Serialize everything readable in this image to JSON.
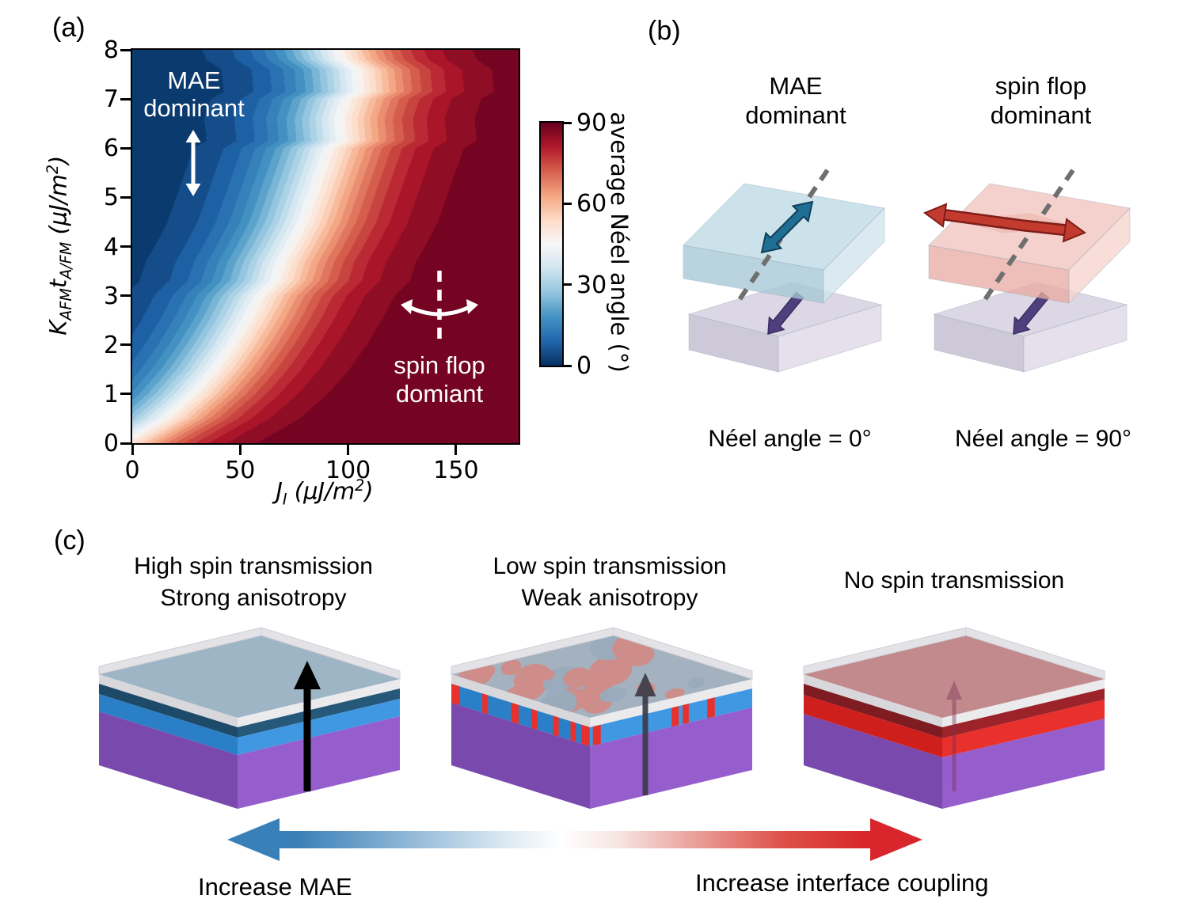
{
  "panel_a": {
    "label": "(a)",
    "xlabel_rich": "J_{I} (μJ/m^{2})",
    "ylabel_rich": "K_{AFM}t_{A/FM} (μJ/m^{2})",
    "annotations": {
      "upper_left_line1": "MAE",
      "upper_left_line2": "dominant",
      "lower_right_line1": "spin flop",
      "lower_right_line2": "domiant"
    },
    "colorbar_label": "average Néel angle (°)"
  },
  "chart_data": {
    "type": "heatmap",
    "title": "",
    "xlabel": "J_I (μJ/m²)",
    "ylabel": "K_AFM t_A/FM (μJ/m²)",
    "x_range": [
      0,
      179
    ],
    "y_range": [
      0,
      8
    ],
    "x_ticks": [
      0,
      50,
      100,
      150
    ],
    "y_ticks": [
      0,
      1,
      2,
      3,
      4,
      5,
      6,
      7,
      8
    ],
    "value_name": "average Néel angle",
    "value_unit": "°",
    "value_range": [
      0,
      90
    ],
    "colorbar": {
      "label": "average Néel angle (°)",
      "ticks": [
        0,
        30,
        60,
        90
      ]
    },
    "colormap_name": "RdBu_r",
    "colormap_anchors": [
      [
        0.0,
        "#053061"
      ],
      [
        0.1,
        "#2166ac"
      ],
      [
        0.2,
        "#4393c3"
      ],
      [
        0.3,
        "#92c5de"
      ],
      [
        0.4,
        "#d1e5f0"
      ],
      [
        0.5,
        "#f7f7f7"
      ],
      [
        0.6,
        "#fddbc7"
      ],
      [
        0.7,
        "#f4a582"
      ],
      [
        0.8,
        "#d6604d"
      ],
      [
        0.9,
        "#b2182b"
      ],
      [
        1.0,
        "#67001f"
      ]
    ],
    "value_model": "angle(x,y) ≈ 90·sigmoid((x − boundary(y)) / 19)",
    "transition_width": 19,
    "contour_levels": 28,
    "boundary_x_by_y": [
      [
        0,
        -5
      ],
      [
        0.5,
        15
      ],
      [
        1,
        28
      ],
      [
        1.5,
        38
      ],
      [
        2,
        46
      ],
      [
        2.5,
        53
      ],
      [
        3,
        59
      ],
      [
        3.3,
        66
      ],
      [
        3.7,
        69
      ],
      [
        4,
        73
      ],
      [
        4.5,
        79
      ],
      [
        5,
        83
      ],
      [
        5.5,
        87
      ],
      [
        6,
        91
      ],
      [
        6.15,
        97
      ],
      [
        6.6,
        96
      ],
      [
        7,
        99
      ],
      [
        7.15,
        105
      ],
      [
        7.6,
        104
      ],
      [
        7.8,
        97
      ],
      [
        8,
        95
      ]
    ],
    "regions": [
      {
        "label": "MAE dominant",
        "neel_angle": "≈0°",
        "location": "upper left (high K_AFM·t, low J_I)"
      },
      {
        "label": "spin flop domiant",
        "neel_angle": "≈90°",
        "location": "lower right (low K_AFM·t, high J_I)"
      }
    ]
  },
  "panel_b": {
    "label": "(b)",
    "left": {
      "title_line1": "MAE",
      "title_line2": "dominant",
      "caption": "Néel angle = 0°"
    },
    "right": {
      "title_line1": "spin flop",
      "title_line2": "dominant",
      "caption": "Néel angle = 90°"
    },
    "colors": {
      "blue_slab_top": "#b8d7e3",
      "blue_slab_left": "#a6c8d6",
      "blue_slab_right": "#cfe4ec",
      "pink_slab_top": "#f0bfb9",
      "pink_slab_left": "#e9aca4",
      "pink_slab_right": "#f6d3ce",
      "substrate_top": "#d9d4e2",
      "substrate_left": "#c9c3d5",
      "substrate_right": "#e2dde9",
      "teal_arrow": "#1f6e94",
      "teal_arrow_edge": "#123f57",
      "red_arrow": "#c23b2e",
      "red_arrow_edge": "#7e1d18",
      "red_arrow_ghost": "#eeb4ab",
      "purple_arrow": "#4f3f7d",
      "dashed_axis": "#6f6f6f"
    }
  },
  "panel_c": {
    "label": "(c)",
    "items": [
      {
        "title_line1": "High spin transmission",
        "title_line2": "Strong anisotropy"
      },
      {
        "title_line1": "Low spin transmission",
        "title_line2": "Weak anisotropy"
      },
      {
        "title_line1": "No spin transmission",
        "title_line2": ""
      }
    ],
    "bottom_left_label": "Increase MAE",
    "bottom_right_label": "Increase interface coupling",
    "colors": {
      "cap_gray": "#e3e3e7",
      "cap_gray_edge": "#cfcfd4",
      "cap_band_left": "#d8d8dc",
      "cap_band_right": "#ebebee",
      "blue_top": "#7d9cb3",
      "blue_dark_band_left": "#1d4a69",
      "blue_dark_band_right": "#26587a",
      "blue_band_left": "#2b7fc7",
      "blue_band_right": "#4198e2",
      "mixed_top_base": "#8e9fb0",
      "mixed_blob_red": "#c4706b",
      "mixed_blob_blue": "#7f97ac",
      "stripe_red": "#e8312c",
      "red_top": "#b16a6d",
      "red_dark_band_left": "#7e1c21",
      "red_dark_band_right": "#9c2329",
      "red_band_left": "#cf1f1c",
      "red_band_right": "#e8302c",
      "purple_left": "#7a49ae",
      "purple_right": "#965ecd",
      "black_arrow": "#000000",
      "gray_arrow": "#3c3c47",
      "faint_arrow": "#7c3050",
      "gradient_blue": "#3a80b8",
      "gradient_red": "#d8262c"
    }
  }
}
